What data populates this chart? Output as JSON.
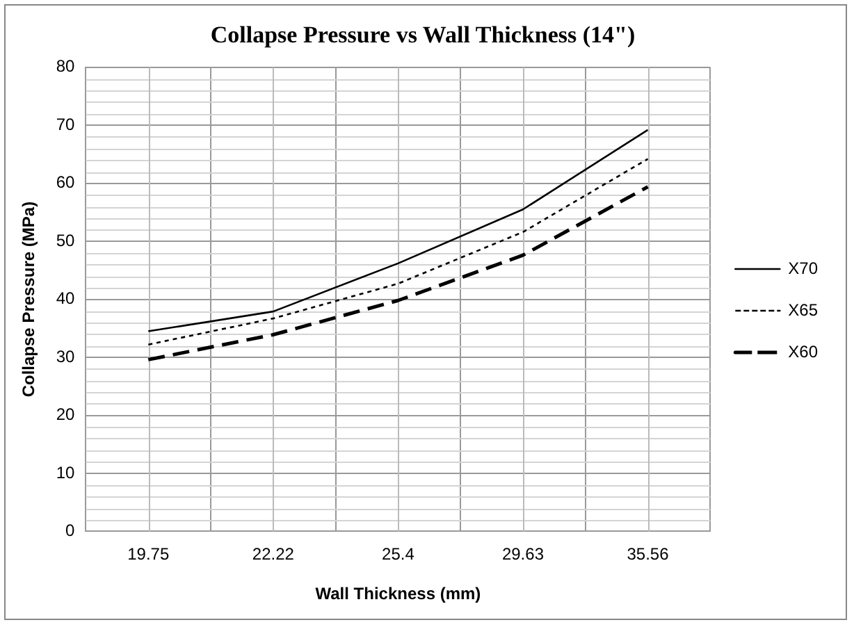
{
  "chart_data": {
    "type": "line",
    "title": "Collapse Pressure vs Wall Thickness (14\")",
    "xlabel": "Wall Thickness (mm)",
    "ylabel": "Collapse Pressure (MPa)",
    "categories": [
      "19.75",
      "22.22",
      "25.4",
      "29.63",
      "35.56"
    ],
    "series": [
      {
        "name": "X70",
        "color": "#000000",
        "line_style": "solid",
        "values": [
          34.5,
          37.9,
          46.2,
          55.5,
          69.2
        ]
      },
      {
        "name": "X65",
        "color": "#000000",
        "line_style": "dotted",
        "values": [
          32.2,
          36.7,
          42.7,
          51.6,
          64.2
        ]
      },
      {
        "name": "X60",
        "color": "#000000",
        "line_style": "dashed",
        "values": [
          29.6,
          33.9,
          39.8,
          47.6,
          59.4
        ]
      }
    ],
    "ylim": [
      0,
      80
    ],
    "yticks": [
      0,
      10,
      20,
      30,
      40,
      50,
      60,
      70,
      80
    ],
    "grid": true,
    "legend": "right",
    "marker": "none"
  }
}
